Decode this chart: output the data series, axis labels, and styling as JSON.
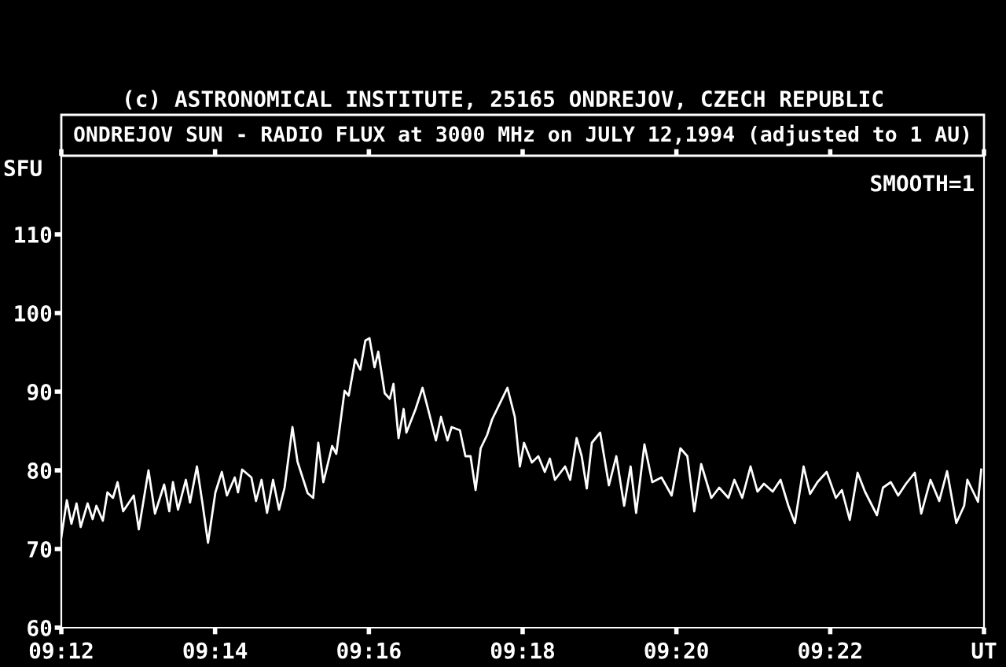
{
  "chart_data": {
    "type": "line",
    "title": "(c) ASTRONOMICAL INSTITUTE, 25165 ONDREJOV, CZECH REPUBLIC",
    "subtitle": "ONDREJOV SUN - RADIO FLUX at 3000 MHz on JULY 12,1994 (adjusted to 1 AU)",
    "ylabel": "SFU",
    "annotations": [
      "SMOOTH=1"
    ],
    "xlim": [
      9.2,
      9.4
    ],
    "ylim": [
      60,
      120
    ],
    "xticks": [
      {
        "value": 9.2,
        "label": "09:12"
      },
      {
        "value": 9.23333,
        "label": "09:14"
      },
      {
        "value": 9.26667,
        "label": "09:16"
      },
      {
        "value": 9.3,
        "label": "09:18"
      },
      {
        "value": 9.33333,
        "label": "09:20"
      },
      {
        "value": 9.36667,
        "label": "09:22"
      },
      {
        "value": 9.4,
        "label": "UT"
      }
    ],
    "yticks": [
      60,
      70,
      80,
      90,
      100,
      110
    ],
    "grid": false,
    "legend": false,
    "marker": "none",
    "line_style": "solid",
    "series": [
      {
        "color": "#ffffff",
        "x": [
          9.2,
          9.2012,
          9.2022,
          9.2033,
          9.2042,
          9.2057,
          9.2068,
          9.2076,
          9.209,
          9.21,
          9.2112,
          9.2122,
          9.2134,
          9.2157,
          9.2168,
          9.2189,
          9.2203,
          9.2223,
          9.2234,
          9.2242,
          9.2253,
          9.227,
          9.2279,
          9.2294,
          9.2306,
          9.2318,
          9.2334,
          9.2348,
          9.2359,
          9.2376,
          9.2383,
          9.2392,
          9.2412,
          9.2422,
          9.2434,
          9.2446,
          9.2459,
          9.2472,
          9.2484,
          9.2501,
          9.2512,
          9.2534,
          9.2546,
          9.2557,
          9.2568,
          9.2587,
          9.2596,
          9.2614,
          9.2623,
          9.2637,
          9.2648,
          9.2659,
          9.2668,
          9.2679,
          9.2687,
          9.2701,
          9.2712,
          9.272,
          9.2731,
          9.2742,
          9.2748,
          9.2768,
          9.2783,
          9.2798,
          9.2812,
          9.2823,
          9.2837,
          9.2846,
          9.2864,
          9.2876,
          9.2887,
          9.2898,
          9.2909,
          9.2923,
          9.2934,
          9.2967,
          9.2983,
          9.2994,
          9.3003,
          9.302,
          9.3034,
          9.3048,
          9.3059,
          9.307,
          9.3092,
          9.3103,
          9.3117,
          9.3128,
          9.3139,
          9.315,
          9.3168,
          9.3187,
          9.3203,
          9.322,
          9.3234,
          9.3246,
          9.3264,
          9.3281,
          9.3301,
          9.3323,
          9.3342,
          9.3357,
          9.3372,
          9.3387,
          9.3409,
          9.3426,
          9.3446,
          9.3459,
          9.3476,
          9.3494,
          9.3509,
          9.3523,
          9.3542,
          9.3559,
          9.3576,
          9.359,
          9.3609,
          9.3623,
          9.3639,
          9.3659,
          9.3679,
          9.3692,
          9.3709,
          9.3726,
          9.3742,
          9.3768,
          9.3781,
          9.3798,
          9.3814,
          9.3831,
          9.385,
          9.3864,
          9.3884,
          9.3903,
          9.392,
          9.394,
          9.3957,
          9.3964,
          9.3987,
          9.3994
        ],
        "values": [
          71.5,
          76.2,
          73.2,
          75.8,
          72.8,
          75.8,
          73.8,
          75.5,
          73.6,
          77.2,
          76.5,
          78.5,
          74.8,
          76.8,
          72.5,
          80,
          74.5,
          78.2,
          74.8,
          78.5,
          75,
          78.8,
          75.9,
          80.5,
          75.8,
          70.8,
          77.2,
          79.8,
          76.8,
          79.1,
          77.2,
          80.1,
          79.1,
          76.1,
          78.8,
          74.6,
          78.8,
          75,
          77.8,
          85.5,
          81.1,
          77.1,
          76.5,
          83.5,
          78.5,
          83.1,
          82.1,
          90.1,
          89.5,
          94.1,
          92.8,
          96.5,
          96.8,
          93.1,
          95.1,
          89.8,
          89.1,
          91,
          84.1,
          87.8,
          84.8,
          87.8,
          90.5,
          87.1,
          83.8,
          86.8,
          83.8,
          85.5,
          85.1,
          81.8,
          81.8,
          77.5,
          82.8,
          84.5,
          86.5,
          90.5,
          86.8,
          80.5,
          83.5,
          81,
          81.8,
          79.8,
          81.5,
          78.8,
          80.5,
          78.8,
          84.1,
          81.8,
          77.7,
          83.5,
          84.8,
          78.1,
          81.8,
          75.5,
          80.5,
          74.6,
          83.3,
          78.5,
          79.1,
          76.8,
          82.8,
          81.8,
          74.8,
          80.8,
          76.5,
          77.8,
          76.5,
          78.8,
          76.5,
          80.5,
          77.3,
          78.3,
          77.3,
          78.8,
          75.5,
          73.3,
          80.5,
          77,
          78.5,
          79.8,
          76.5,
          77.5,
          73.7,
          79.7,
          77.3,
          74.3,
          77.8,
          78.5,
          76.8,
          78.3,
          79.7,
          74.5,
          78.8,
          76.1,
          79.9,
          73.3,
          75.5,
          78.8,
          76,
          80.1
        ]
      }
    ]
  }
}
